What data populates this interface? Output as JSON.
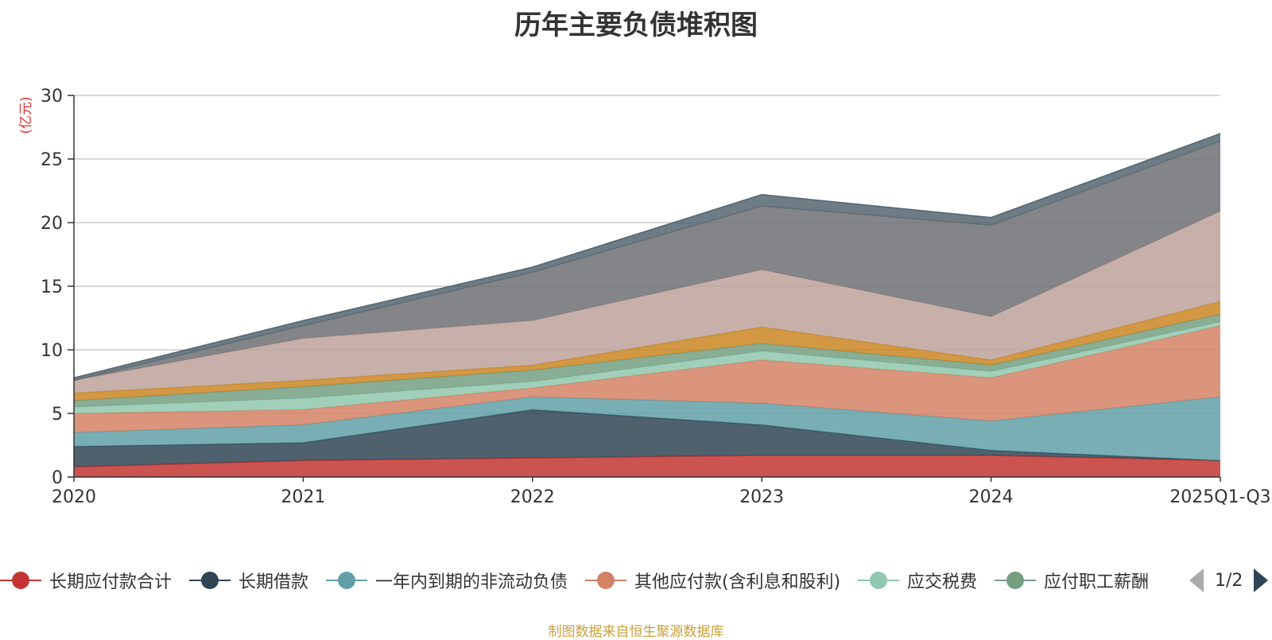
{
  "chart_data": {
    "type": "area",
    "stacked": true,
    "title": "历年主要负债堆积图",
    "ylabel": "(亿元)",
    "xlabel": "",
    "categories": [
      "2020",
      "2021",
      "2022",
      "2023",
      "2024",
      "2025Q1-Q3"
    ],
    "ylim": [
      0,
      30
    ],
    "yticks": [
      0,
      5,
      10,
      15,
      20,
      25,
      30
    ],
    "grid": true,
    "series": [
      {
        "name": "长期应付款合计",
        "values": [
          0.8,
          1.3,
          1.5,
          1.7,
          1.7,
          1.3
        ],
        "color": "#c23531",
        "in_legend": true
      },
      {
        "name": "长期借款",
        "values": [
          1.6,
          1.4,
          3.8,
          2.4,
          0.4,
          0.0
        ],
        "color": "#2f4554",
        "in_legend": true
      },
      {
        "name": "一年内到期的非流动负债",
        "values": [
          1.1,
          1.4,
          1.0,
          1.7,
          2.3,
          5.0
        ],
        "color": "#61a0a8",
        "in_legend": true
      },
      {
        "name": "其他应付款(含利息和股利)",
        "values": [
          1.5,
          1.2,
          0.7,
          3.4,
          3.4,
          5.6
        ],
        "color": "#d48265",
        "in_legend": true
      },
      {
        "name": "应交税费",
        "values": [
          0.5,
          0.9,
          0.5,
          0.7,
          0.5,
          0.3
        ],
        "color": "#91c7ae",
        "in_legend": true
      },
      {
        "name": "应付职工薪酬",
        "values": [
          0.5,
          0.9,
          0.9,
          0.6,
          0.5,
          0.6
        ],
        "color": "#749f83",
        "in_legend": true
      },
      {
        "name": "",
        "values": [
          0.6,
          0.5,
          0.4,
          1.3,
          0.4,
          1.0
        ],
        "color": "#ca8622",
        "in_legend": false
      },
      {
        "name": "",
        "values": [
          1.0,
          3.3,
          3.5,
          4.5,
          3.4,
          7.1
        ],
        "color": "#bda29a",
        "in_legend": false
      },
      {
        "name": "",
        "values": [
          0.0,
          1.0,
          3.8,
          5.0,
          7.2,
          5.5
        ],
        "color": "#6e7074",
        "in_legend": false
      },
      {
        "name": "",
        "values": [
          0.2,
          0.4,
          0.4,
          0.9,
          0.6,
          0.6
        ],
        "color": "#546570",
        "in_legend": false
      }
    ]
  },
  "legend": {
    "items": [
      {
        "label": "长期应付款合计",
        "color": "#c23531"
      },
      {
        "label": "长期借款",
        "color": "#2f4554"
      },
      {
        "label": "一年内到期的非流动负债",
        "color": "#61a0a8"
      },
      {
        "label": "其他应付款(含利息和股利)",
        "color": "#d48265"
      },
      {
        "label": "应交税费",
        "color": "#91c7ae"
      },
      {
        "label": "应付职工薪酬",
        "color": "#749f83"
      }
    ],
    "page_text": "1/2"
  },
  "source_note": "制图数据来自恒生聚源数据库"
}
